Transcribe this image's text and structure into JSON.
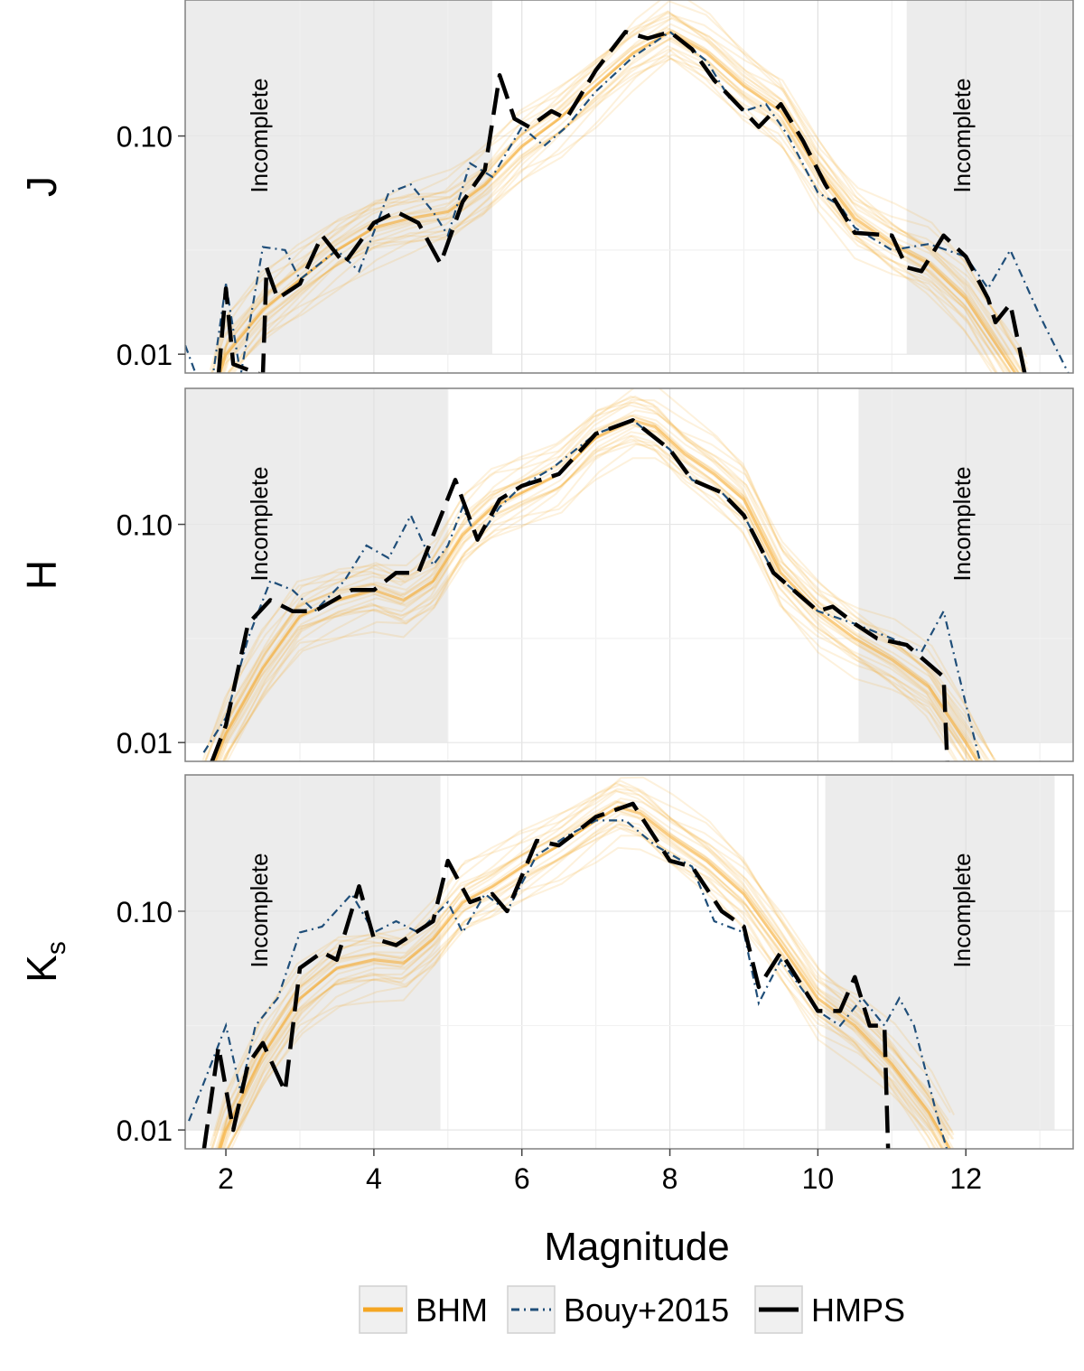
{
  "chart_data": {
    "type": "line",
    "xlabel": "Magnitude",
    "x_ticks": [
      2,
      4,
      6,
      8,
      10,
      12
    ],
    "y_scale": "log",
    "y_ticks": [
      0.01,
      0.1
    ],
    "y_tick_labels": [
      "0.01",
      "0.10"
    ],
    "shade_label": "Incomplete",
    "legend": {
      "placement": "bottom",
      "entries": [
        {
          "name": "BHM",
          "color": "#F5A623",
          "style": "solid"
        },
        {
          "name": "Bouy+2015",
          "color": "#1F4E79",
          "style": "dash-dot"
        },
        {
          "name": "HMPS",
          "color": "#000000",
          "style": "long-dash"
        }
      ]
    },
    "panels": [
      {
        "band": "J",
        "sub": "",
        "xlim": [
          1.45,
          13.45
        ],
        "ylim": [
          0.0082,
          0.42
        ],
        "incomplete": [
          [
            1.45,
            5.6
          ],
          [
            11.2,
            13.45
          ]
        ],
        "bhm": [
          [
            1.8,
            0.006
          ],
          [
            2.0,
            0.01
          ],
          [
            2.5,
            0.016
          ],
          [
            3.0,
            0.022
          ],
          [
            3.5,
            0.03
          ],
          [
            4.0,
            0.038
          ],
          [
            4.5,
            0.042
          ],
          [
            5.0,
            0.045
          ],
          [
            5.5,
            0.06
          ],
          [
            6.0,
            0.09
          ],
          [
            6.5,
            0.12
          ],
          [
            7.0,
            0.17
          ],
          [
            7.5,
            0.24
          ],
          [
            8.0,
            0.3
          ],
          [
            8.5,
            0.24
          ],
          [
            9.0,
            0.17
          ],
          [
            9.5,
            0.13
          ],
          [
            10.0,
            0.07
          ],
          [
            10.5,
            0.042
          ],
          [
            11.0,
            0.032
          ],
          [
            11.5,
            0.026
          ],
          [
            12.0,
            0.018
          ],
          [
            12.5,
            0.01
          ],
          [
            12.8,
            0.007
          ]
        ],
        "bouy": [
          [
            1.45,
            0.011
          ],
          [
            1.6,
            0.008
          ],
          [
            1.8,
            0.007
          ],
          [
            2.0,
            0.021
          ],
          [
            2.2,
            0.008
          ],
          [
            2.5,
            0.031
          ],
          [
            2.8,
            0.03
          ],
          [
            3.0,
            0.022
          ],
          [
            3.5,
            0.03
          ],
          [
            3.8,
            0.024
          ],
          [
            4.2,
            0.055
          ],
          [
            4.5,
            0.06
          ],
          [
            4.8,
            0.045
          ],
          [
            5.0,
            0.035
          ],
          [
            5.3,
            0.075
          ],
          [
            5.6,
            0.065
          ],
          [
            6.0,
            0.11
          ],
          [
            6.3,
            0.09
          ],
          [
            6.6,
            0.11
          ],
          [
            7.0,
            0.16
          ],
          [
            7.5,
            0.23
          ],
          [
            8.0,
            0.3
          ],
          [
            8.5,
            0.22
          ],
          [
            8.8,
            0.15
          ],
          [
            9.0,
            0.13
          ],
          [
            9.3,
            0.14
          ],
          [
            9.6,
            0.1
          ],
          [
            10.0,
            0.055
          ],
          [
            10.3,
            0.048
          ],
          [
            10.5,
            0.038
          ],
          [
            11.0,
            0.03
          ],
          [
            11.5,
            0.032
          ],
          [
            12.0,
            0.028
          ],
          [
            12.3,
            0.02
          ],
          [
            12.6,
            0.03
          ],
          [
            13.0,
            0.015
          ],
          [
            13.4,
            0.008
          ]
        ],
        "hmps": [
          [
            1.9,
            0.008
          ],
          [
            2.0,
            0.02
          ],
          [
            2.1,
            0.009
          ],
          [
            2.5,
            0.008
          ],
          [
            2.55,
            0.025
          ],
          [
            2.7,
            0.018
          ],
          [
            3.0,
            0.021
          ],
          [
            3.3,
            0.035
          ],
          [
            3.6,
            0.026
          ],
          [
            4.0,
            0.04
          ],
          [
            4.3,
            0.045
          ],
          [
            4.6,
            0.04
          ],
          [
            4.9,
            0.026
          ],
          [
            5.2,
            0.05
          ],
          [
            5.5,
            0.07
          ],
          [
            5.7,
            0.19
          ],
          [
            5.9,
            0.12
          ],
          [
            6.1,
            0.11
          ],
          [
            6.4,
            0.13
          ],
          [
            6.6,
            0.12
          ],
          [
            7.0,
            0.2
          ],
          [
            7.4,
            0.3
          ],
          [
            7.7,
            0.28
          ],
          [
            8.0,
            0.3
          ],
          [
            8.3,
            0.25
          ],
          [
            8.6,
            0.18
          ],
          [
            9.0,
            0.13
          ],
          [
            9.2,
            0.11
          ],
          [
            9.5,
            0.14
          ],
          [
            9.8,
            0.095
          ],
          [
            10.1,
            0.06
          ],
          [
            10.5,
            0.036
          ],
          [
            11.0,
            0.035
          ],
          [
            11.2,
            0.025
          ],
          [
            11.4,
            0.024
          ],
          [
            11.7,
            0.035
          ],
          [
            12.0,
            0.028
          ],
          [
            12.3,
            0.018
          ],
          [
            12.4,
            0.014
          ],
          [
            12.6,
            0.017
          ],
          [
            12.8,
            0.008
          ]
        ]
      },
      {
        "band": "H",
        "sub": "",
        "xlim": [
          1.45,
          13.45
        ],
        "ylim": [
          0.0082,
          0.42
        ],
        "incomplete": [
          [
            1.45,
            5.0
          ],
          [
            10.55,
            13.45
          ]
        ],
        "bhm": [
          [
            1.7,
            0.006
          ],
          [
            2.0,
            0.011
          ],
          [
            2.5,
            0.022
          ],
          [
            3.0,
            0.038
          ],
          [
            3.5,
            0.045
          ],
          [
            4.0,
            0.05
          ],
          [
            4.4,
            0.045
          ],
          [
            4.8,
            0.055
          ],
          [
            5.2,
            0.09
          ],
          [
            5.6,
            0.12
          ],
          [
            6.0,
            0.14
          ],
          [
            6.5,
            0.17
          ],
          [
            7.0,
            0.25
          ],
          [
            7.5,
            0.3
          ],
          [
            7.8,
            0.28
          ],
          [
            8.2,
            0.21
          ],
          [
            8.6,
            0.17
          ],
          [
            9.0,
            0.13
          ],
          [
            9.5,
            0.06
          ],
          [
            10.0,
            0.04
          ],
          [
            10.5,
            0.03
          ],
          [
            11.0,
            0.024
          ],
          [
            11.5,
            0.018
          ],
          [
            12.0,
            0.01
          ],
          [
            12.4,
            0.006
          ]
        ],
        "bouy": [
          [
            1.7,
            0.009
          ],
          [
            2.0,
            0.013
          ],
          [
            2.3,
            0.03
          ],
          [
            2.6,
            0.055
          ],
          [
            2.9,
            0.05
          ],
          [
            3.2,
            0.04
          ],
          [
            3.6,
            0.055
          ],
          [
            3.9,
            0.08
          ],
          [
            4.2,
            0.07
          ],
          [
            4.5,
            0.11
          ],
          [
            4.8,
            0.065
          ],
          [
            5.0,
            0.08
          ],
          [
            5.2,
            0.12
          ],
          [
            5.4,
            0.085
          ],
          [
            5.7,
            0.12
          ],
          [
            6.0,
            0.15
          ],
          [
            6.4,
            0.18
          ],
          [
            7.0,
            0.26
          ],
          [
            7.5,
            0.3
          ],
          [
            8.0,
            0.22
          ],
          [
            8.3,
            0.16
          ],
          [
            8.7,
            0.14
          ],
          [
            9.0,
            0.11
          ],
          [
            9.4,
            0.06
          ],
          [
            10.0,
            0.04
          ],
          [
            10.5,
            0.035
          ],
          [
            11.0,
            0.03
          ],
          [
            11.4,
            0.026
          ],
          [
            11.7,
            0.04
          ],
          [
            12.0,
            0.015
          ],
          [
            12.2,
            0.008
          ]
        ],
        "hmps": [
          [
            1.8,
            0.008
          ],
          [
            2.0,
            0.012
          ],
          [
            2.3,
            0.035
          ],
          [
            2.6,
            0.045
          ],
          [
            2.9,
            0.04
          ],
          [
            3.2,
            0.04
          ],
          [
            3.7,
            0.05
          ],
          [
            4.0,
            0.05
          ],
          [
            4.3,
            0.06
          ],
          [
            4.6,
            0.06
          ],
          [
            5.1,
            0.16
          ],
          [
            5.4,
            0.085
          ],
          [
            5.7,
            0.13
          ],
          [
            6.0,
            0.15
          ],
          [
            6.5,
            0.17
          ],
          [
            7.0,
            0.26
          ],
          [
            7.5,
            0.3
          ],
          [
            8.0,
            0.22
          ],
          [
            8.3,
            0.16
          ],
          [
            8.7,
            0.14
          ],
          [
            9.0,
            0.11
          ],
          [
            9.4,
            0.06
          ],
          [
            10.0,
            0.04
          ],
          [
            10.2,
            0.042
          ],
          [
            10.5,
            0.035
          ],
          [
            10.8,
            0.03
          ],
          [
            11.2,
            0.028
          ],
          [
            11.7,
            0.02
          ],
          [
            11.75,
            0.008
          ]
        ]
      },
      {
        "band": "K",
        "sub": "s",
        "xlim": [
          1.45,
          13.45
        ],
        "ylim": [
          0.0082,
          0.42
        ],
        "incomplete": [
          [
            1.45,
            4.9
          ],
          [
            10.1,
            13.2
          ]
        ],
        "bhm": [
          [
            1.8,
            0.006
          ],
          [
            2.0,
            0.01
          ],
          [
            2.5,
            0.022
          ],
          [
            3.0,
            0.04
          ],
          [
            3.5,
            0.055
          ],
          [
            4.0,
            0.06
          ],
          [
            4.4,
            0.058
          ],
          [
            4.8,
            0.075
          ],
          [
            5.2,
            0.11
          ],
          [
            5.6,
            0.13
          ],
          [
            6.0,
            0.16
          ],
          [
            6.5,
            0.2
          ],
          [
            7.0,
            0.26
          ],
          [
            7.3,
            0.3
          ],
          [
            7.6,
            0.28
          ],
          [
            8.0,
            0.22
          ],
          [
            8.5,
            0.17
          ],
          [
            9.0,
            0.12
          ],
          [
            9.5,
            0.07
          ],
          [
            10.0,
            0.04
          ],
          [
            10.5,
            0.03
          ],
          [
            11.0,
            0.02
          ],
          [
            11.5,
            0.012
          ],
          [
            11.8,
            0.008
          ]
        ],
        "bouy": [
          [
            1.5,
            0.011
          ],
          [
            1.8,
            0.02
          ],
          [
            2.0,
            0.03
          ],
          [
            2.2,
            0.015
          ],
          [
            2.4,
            0.03
          ],
          [
            2.7,
            0.04
          ],
          [
            3.0,
            0.08
          ],
          [
            3.3,
            0.085
          ],
          [
            3.7,
            0.12
          ],
          [
            4.0,
            0.08
          ],
          [
            4.3,
            0.09
          ],
          [
            4.6,
            0.08
          ],
          [
            5.0,
            0.11
          ],
          [
            5.2,
            0.08
          ],
          [
            5.5,
            0.12
          ],
          [
            5.8,
            0.1
          ],
          [
            6.2,
            0.18
          ],
          [
            6.6,
            0.22
          ],
          [
            7.0,
            0.26
          ],
          [
            7.4,
            0.26
          ],
          [
            7.8,
            0.2
          ],
          [
            8.3,
            0.16
          ],
          [
            8.6,
            0.09
          ],
          [
            9.0,
            0.08
          ],
          [
            9.2,
            0.038
          ],
          [
            9.5,
            0.06
          ],
          [
            10.0,
            0.035
          ],
          [
            10.3,
            0.03
          ],
          [
            10.6,
            0.04
          ],
          [
            10.9,
            0.03
          ],
          [
            11.1,
            0.04
          ],
          [
            11.3,
            0.03
          ],
          [
            11.6,
            0.012
          ],
          [
            11.8,
            0.007
          ]
        ],
        "hmps": [
          [
            1.7,
            0.008
          ],
          [
            1.9,
            0.024
          ],
          [
            2.1,
            0.01
          ],
          [
            2.3,
            0.02
          ],
          [
            2.5,
            0.025
          ],
          [
            2.8,
            0.015
          ],
          [
            3.0,
            0.055
          ],
          [
            3.3,
            0.065
          ],
          [
            3.5,
            0.06
          ],
          [
            3.8,
            0.13
          ],
          [
            4.0,
            0.075
          ],
          [
            4.3,
            0.07
          ],
          [
            4.8,
            0.09
          ],
          [
            5.0,
            0.17
          ],
          [
            5.3,
            0.11
          ],
          [
            5.6,
            0.12
          ],
          [
            5.8,
            0.1
          ],
          [
            6.2,
            0.21
          ],
          [
            6.5,
            0.2
          ],
          [
            7.0,
            0.27
          ],
          [
            7.5,
            0.31
          ],
          [
            8.0,
            0.17
          ],
          [
            8.3,
            0.16
          ],
          [
            8.7,
            0.1
          ],
          [
            9.0,
            0.085
          ],
          [
            9.2,
            0.045
          ],
          [
            9.5,
            0.065
          ],
          [
            10.0,
            0.035
          ],
          [
            10.3,
            0.035
          ],
          [
            10.5,
            0.05
          ],
          [
            10.7,
            0.03
          ],
          [
            10.9,
            0.03
          ],
          [
            10.95,
            0.008
          ]
        ]
      }
    ]
  }
}
